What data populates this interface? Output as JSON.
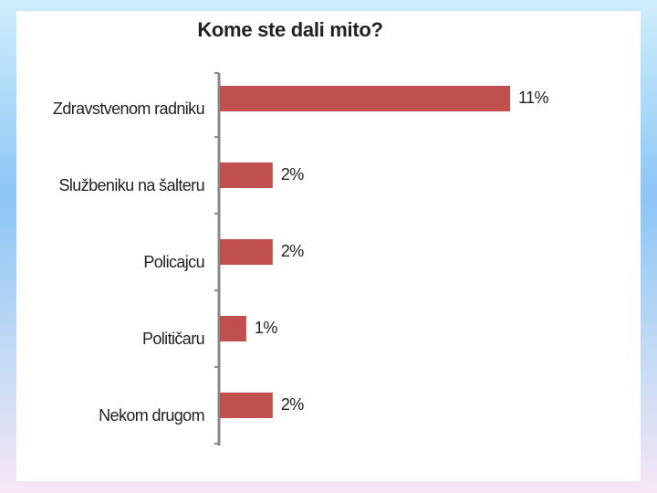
{
  "chart_data": {
    "type": "barh",
    "title": "Kome ste dali mito?",
    "categories": [
      "Zdravstvenom radniku",
      "Službeniku na šalteru",
      "Policajcu",
      "Političaru",
      "Nekom drugom"
    ],
    "values": [
      11,
      2,
      2,
      1,
      2
    ],
    "value_labels": [
      "11%",
      "2%",
      "2%",
      "1%",
      "2%"
    ],
    "color": "#c0504d"
  }
}
